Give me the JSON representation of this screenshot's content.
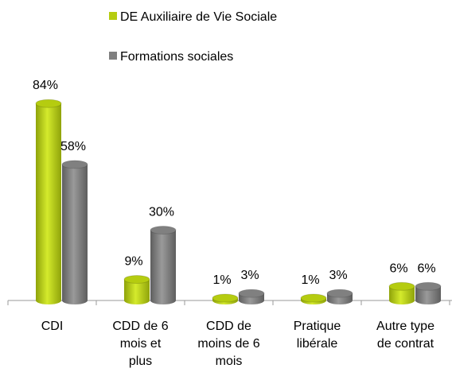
{
  "chart_data": {
    "type": "bar",
    "categories": [
      "CDI",
      "CDD de 6 mois et plus",
      "CDD de moins de 6 mois",
      "Pratique libérale",
      "Autre type de contrat"
    ],
    "series": [
      {
        "name": "DE Auxiliaire de Vie Sociale",
        "color": "#b5cc10",
        "values": [
          84,
          9,
          1,
          1,
          6
        ],
        "value_labels": [
          "84%",
          "9%",
          "1%",
          "1%",
          "6%"
        ]
      },
      {
        "name": "Formations sociales",
        "color": "#808080",
        "values": [
          58,
          30,
          3,
          3,
          6
        ],
        "value_labels": [
          "58%",
          "30%",
          "3%",
          "3%",
          "6%"
        ]
      }
    ],
    "legend": "top"
  }
}
